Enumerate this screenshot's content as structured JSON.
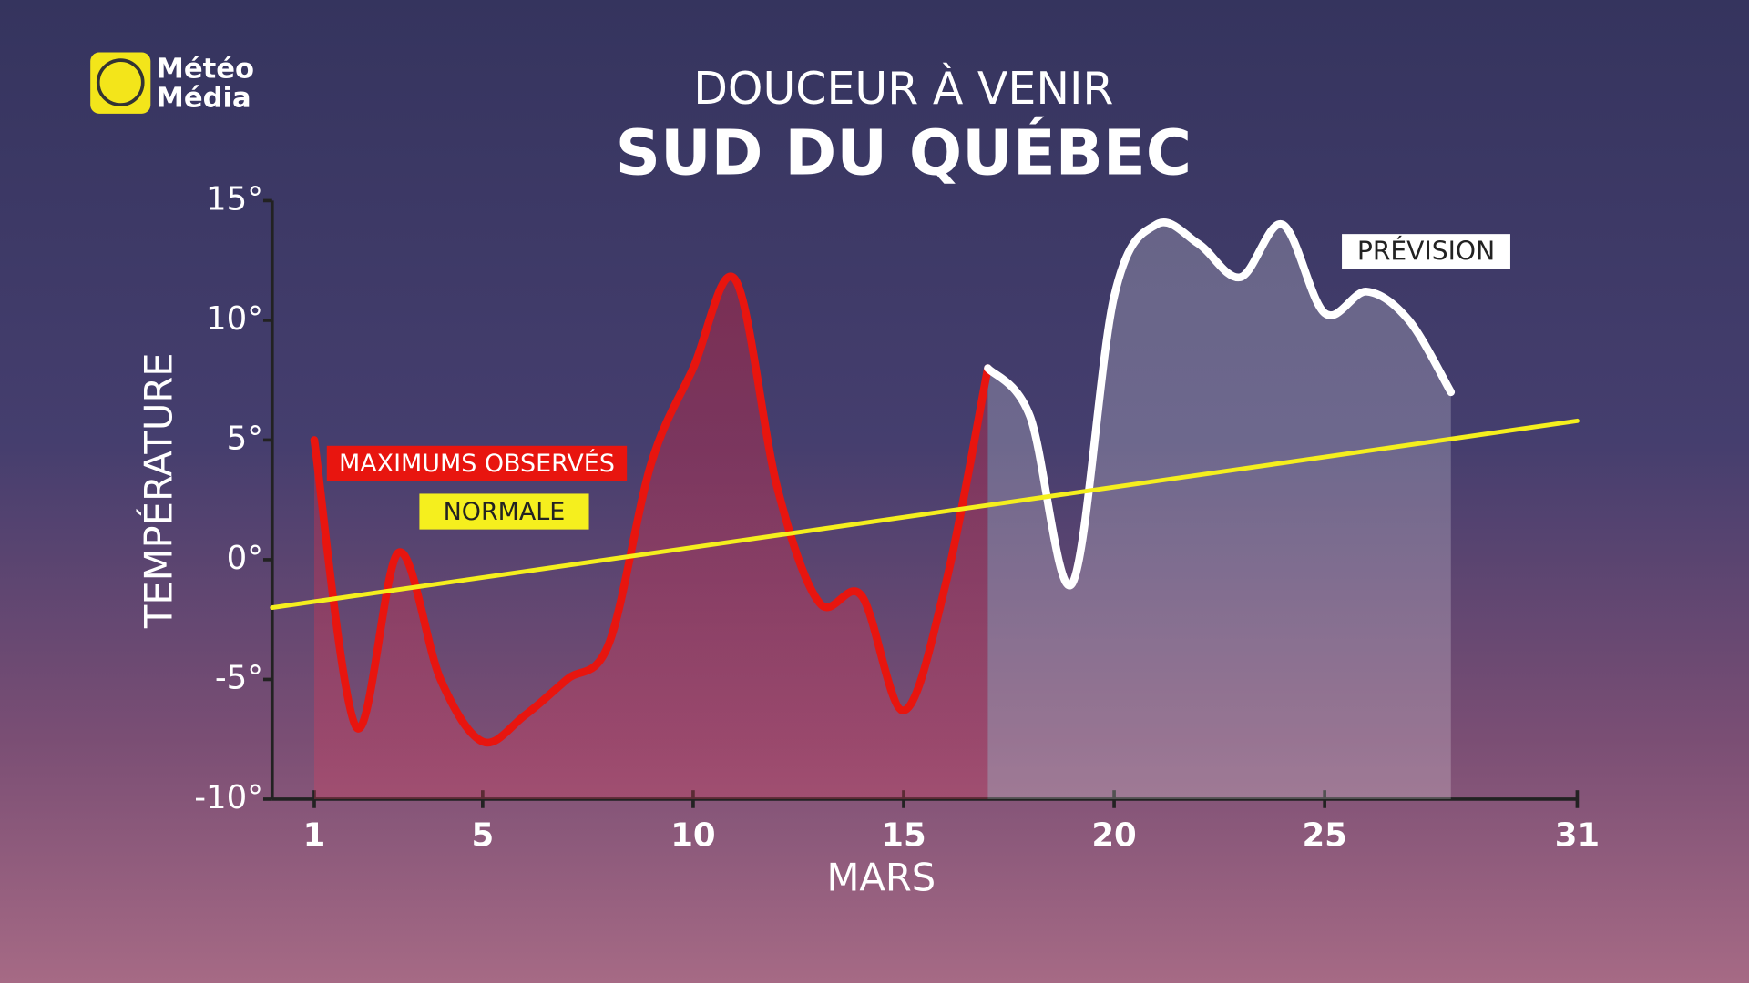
{
  "logo": {
    "line1": "Météo",
    "line2": "Média"
  },
  "chart_data": {
    "type": "line",
    "title": "DOUCEUR À VENIR",
    "subtitle": "SUD DU QUÉBEC",
    "y_label": "TEMPÉRATURE",
    "x_label": "MARS",
    "xlim": [
      0,
      31
    ],
    "xticks": [
      1,
      5,
      10,
      15,
      20,
      25,
      31
    ],
    "ylim": [
      -10,
      15
    ],
    "yticks": [
      {
        "value": -10,
        "label": "-10°"
      },
      {
        "value": -5,
        "label": "-5°"
      },
      {
        "value": 0,
        "label": "0°"
      },
      {
        "value": 5,
        "label": "5°"
      },
      {
        "value": 10,
        "label": "10°"
      },
      {
        "value": 15,
        "label": "15°"
      }
    ],
    "series": [
      {
        "name": "MAXIMUMS OBSERVÉS",
        "color": "#e8150f",
        "area": true,
        "x": [
          1,
          2,
          3,
          4,
          5,
          6,
          7,
          8,
          9,
          10,
          11,
          12,
          13,
          14,
          15,
          16,
          17
        ],
        "values": [
          5,
          -7,
          0.3,
          -5,
          -7.6,
          -6.5,
          -5,
          -3.5,
          4,
          8,
          11.7,
          3,
          -1.8,
          -1.5,
          -6.3,
          -1,
          8
        ]
      },
      {
        "name": "PRÉVISION",
        "color": "#ffffff",
        "area": true,
        "x": [
          17,
          18,
          19,
          20,
          21,
          22,
          23,
          24,
          25,
          26,
          27,
          28
        ],
        "values": [
          8,
          6,
          -1,
          11,
          14,
          13.2,
          11.8,
          14,
          10.3,
          11.2,
          10,
          7
        ]
      },
      {
        "name": "NORMALE",
        "color": "#f5ef1e",
        "area": false,
        "x": [
          0,
          31
        ],
        "values": [
          -2,
          5.8
        ]
      }
    ]
  }
}
